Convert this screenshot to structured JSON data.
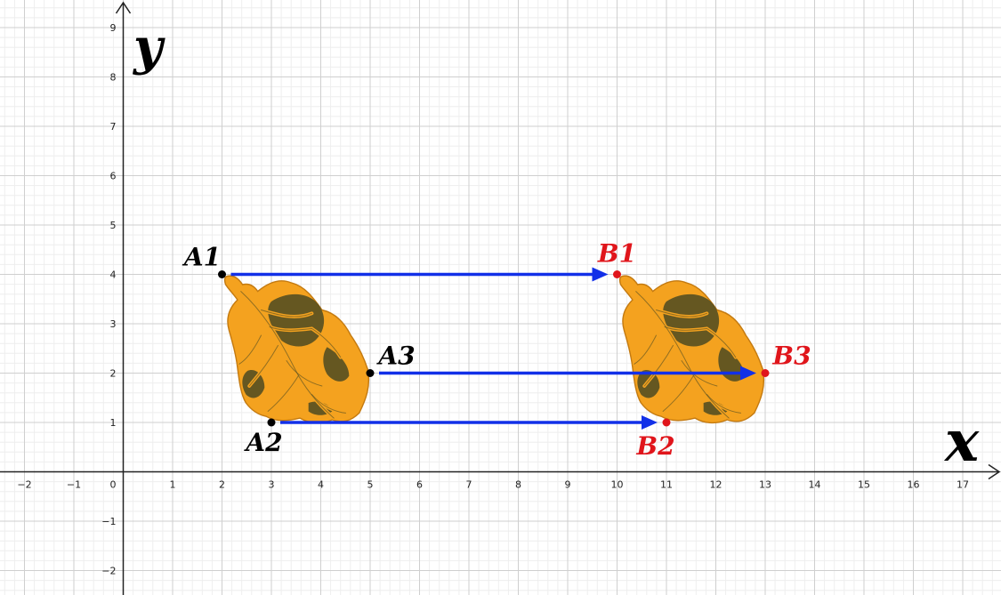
{
  "plot": {
    "x_axis_label": "x",
    "y_axis_label": "y",
    "x_range": [
      -2.3,
      17.8
    ],
    "y_range": [
      -2.5,
      9.5
    ],
    "x_ticks": [
      -2,
      -1,
      1,
      2,
      3,
      4,
      5,
      6,
      7,
      8,
      9,
      10,
      11,
      12,
      13,
      14,
      15,
      16,
      17
    ],
    "y_ticks": [
      -2,
      -1,
      1,
      2,
      3,
      4,
      5,
      6,
      7,
      8,
      9
    ],
    "origin_label": "0",
    "grid": true
  },
  "points": [
    {
      "name": "A1",
      "x": 2,
      "y": 4,
      "color": "#000000",
      "label_anchor": "above-left"
    },
    {
      "name": "A2",
      "x": 3,
      "y": 1,
      "color": "#000000",
      "label_anchor": "below-left"
    },
    {
      "name": "A3",
      "x": 5,
      "y": 2,
      "color": "#000000",
      "label_anchor": "above-right"
    },
    {
      "name": "B1",
      "x": 10,
      "y": 4,
      "color": "#e0151b",
      "label_anchor": "above"
    },
    {
      "name": "B2",
      "x": 11,
      "y": 1,
      "color": "#e0151b",
      "label_anchor": "below"
    },
    {
      "name": "B3",
      "x": 13,
      "y": 2,
      "color": "#e0151b",
      "label_anchor": "above-right"
    }
  ],
  "arrows": [
    {
      "from": "A1",
      "to": "B1",
      "color": "#1230e8"
    },
    {
      "from": "A3",
      "to": "B3",
      "color": "#1230e8"
    },
    {
      "from": "A2",
      "to": "B2",
      "color": "#1230e8"
    }
  ],
  "shapes": [
    {
      "name": "original-leaf",
      "anchor": "A1",
      "fill": "#f4a21f",
      "vein": "#4b4a22"
    },
    {
      "name": "translated-leaf",
      "anchor": "B1",
      "fill": "#f4a21f",
      "vein": "#4b4a22"
    }
  ]
}
